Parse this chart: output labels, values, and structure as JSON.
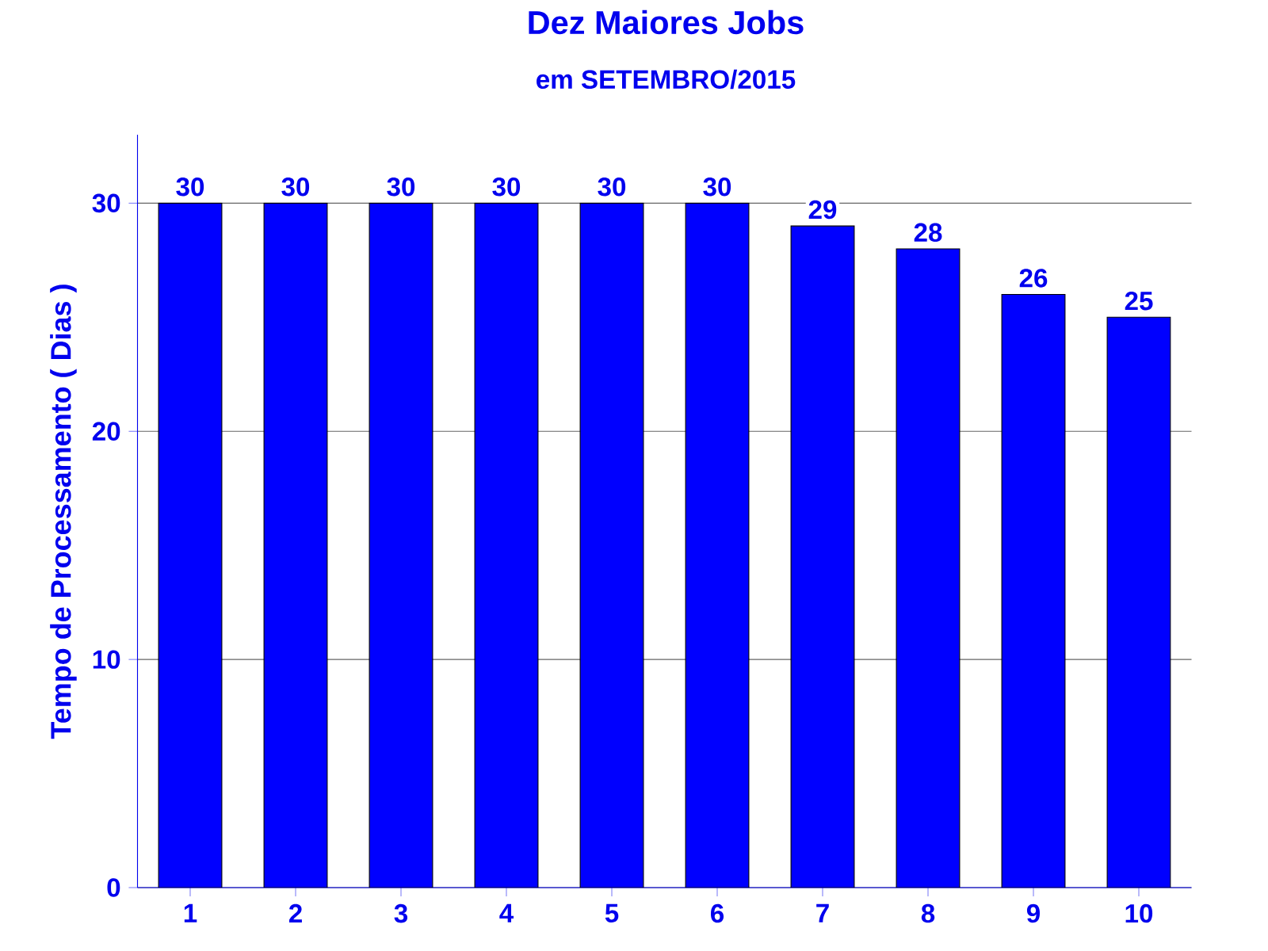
{
  "chart_data": {
    "type": "bar",
    "title": "Dez Maiores Jobs",
    "subtitle": "em SETEMBRO/2015",
    "ylabel": "Tempo de Processamento ( Dias )",
    "categories": [
      "1",
      "2",
      "3",
      "4",
      "5",
      "6",
      "7",
      "8",
      "9",
      "10"
    ],
    "values": [
      30,
      30,
      30,
      30,
      30,
      30,
      29,
      28,
      26,
      25
    ],
    "color": "#0000ff",
    "ylim": [
      0,
      33
    ],
    "yticks": [
      0,
      10,
      20,
      30
    ],
    "grid": "y",
    "data_labels": true
  }
}
